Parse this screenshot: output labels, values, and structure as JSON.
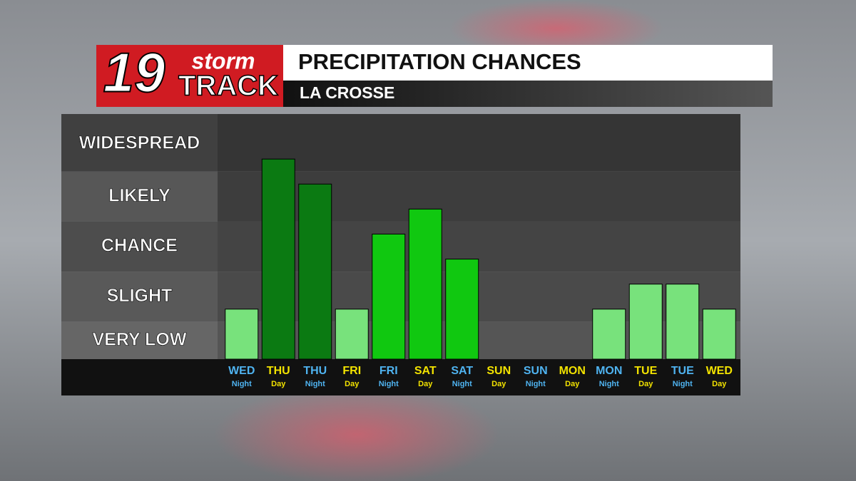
{
  "chart_data": {
    "type": "bar",
    "logo": {
      "number": "19",
      "word1": "storm",
      "word2": "TRACK"
    },
    "title": "PRECIPITATION CHANCES",
    "subtitle": "LA CROSSE",
    "categories": [
      "WED",
      "THU",
      "THU",
      "FRI",
      "FRI",
      "SAT",
      "SAT",
      "SUN",
      "SUN",
      "MON",
      "MON",
      "TUE",
      "TUE",
      "WED"
    ],
    "category_sublabels": [
      "Night",
      "Day",
      "Night",
      "Day",
      "Night",
      "Day",
      "Night",
      "Day",
      "Night",
      "Day",
      "Night",
      "Day",
      "Night",
      "Day"
    ],
    "label_colors": [
      "#4fb3f0",
      "#f2e200",
      "#4fb3f0",
      "#f2e200",
      "#4fb3f0",
      "#f2e200",
      "#4fb3f0",
      "#f2e200",
      "#4fb3f0",
      "#f2e200",
      "#4fb3f0",
      "#f2e200",
      "#4fb3f0",
      "#f2e200"
    ],
    "values": [
      1,
      4,
      3.5,
      1,
      2.5,
      3,
      2,
      0,
      0,
      0,
      1,
      1.5,
      1.5,
      1
    ],
    "colors": [
      "#78e27c",
      "#0b7a12",
      "#0b7a12",
      "#78e27c",
      "#10c810",
      "#10c810",
      "#10c810",
      "#78e27c",
      "#78e27c",
      "#78e27c",
      "#78e27c",
      "#78e27c",
      "#78e27c",
      "#78e27c"
    ],
    "ylim": [
      0,
      4.9
    ],
    "yticks": [
      {
        "value": 0.375,
        "label": "VERY LOW"
      },
      {
        "value": 1.25,
        "label": "SLIGHT"
      },
      {
        "value": 2.25,
        "label": "CHANCE"
      },
      {
        "value": 3.25,
        "label": "LIKELY"
      },
      {
        "value": 4.3,
        "label": "WIDESPREAD"
      }
    ],
    "grid_bands": [
      0,
      0.75,
      1.75,
      2.75,
      3.75,
      4.9
    ]
  }
}
